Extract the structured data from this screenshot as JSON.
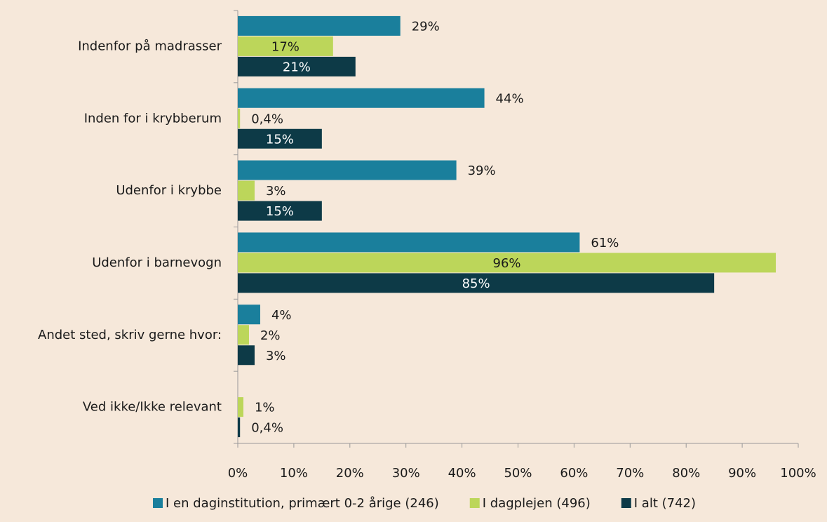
{
  "chart_data": {
    "type": "bar",
    "orientation": "horizontal",
    "categories": [
      "Indenfor på madrasser",
      "Inden for i krybberum",
      "Udenfor i krybbe",
      "Udenfor i barnevogn",
      "Andet sted, skriv gerne hvor:",
      "Ved ikke/Ikke relevant"
    ],
    "series": [
      {
        "name": "I en daginstitution, primært 0-2 årige (246)",
        "color": "#1a7f9c",
        "values": [
          29,
          44,
          39,
          61,
          4,
          null
        ],
        "value_labels": [
          "29%",
          "44%",
          "39%",
          "61%",
          "4%",
          null
        ]
      },
      {
        "name": "I dagplejen (496)",
        "color": "#bcd65a",
        "values": [
          17,
          0.4,
          3,
          96,
          2,
          1
        ],
        "value_labels": [
          "17%",
          "0,4%",
          "3%",
          "96%",
          "2%",
          "1%"
        ]
      },
      {
        "name": "I alt (742)",
        "color": "#0d3a47",
        "values": [
          21,
          15,
          15,
          85,
          3,
          0.4
        ],
        "value_labels": [
          "21%",
          "15%",
          "15%",
          "85%",
          "3%",
          "0,4%"
        ]
      }
    ],
    "xlim": [
      0,
      100
    ],
    "xticks": [
      {
        "value": 0,
        "label": "0%"
      },
      {
        "value": 10,
        "label": "10%"
      },
      {
        "value": 20,
        "label": "20%"
      },
      {
        "value": 30,
        "label": "30%"
      },
      {
        "value": 40,
        "label": "40%"
      },
      {
        "value": 50,
        "label": "50%"
      },
      {
        "value": 60,
        "label": "60%"
      },
      {
        "value": 70,
        "label": "70%"
      },
      {
        "value": 80,
        "label": "80%"
      },
      {
        "value": 90,
        "label": "90%"
      },
      {
        "value": 100,
        "label": "100%"
      }
    ],
    "legend": "bottom"
  }
}
